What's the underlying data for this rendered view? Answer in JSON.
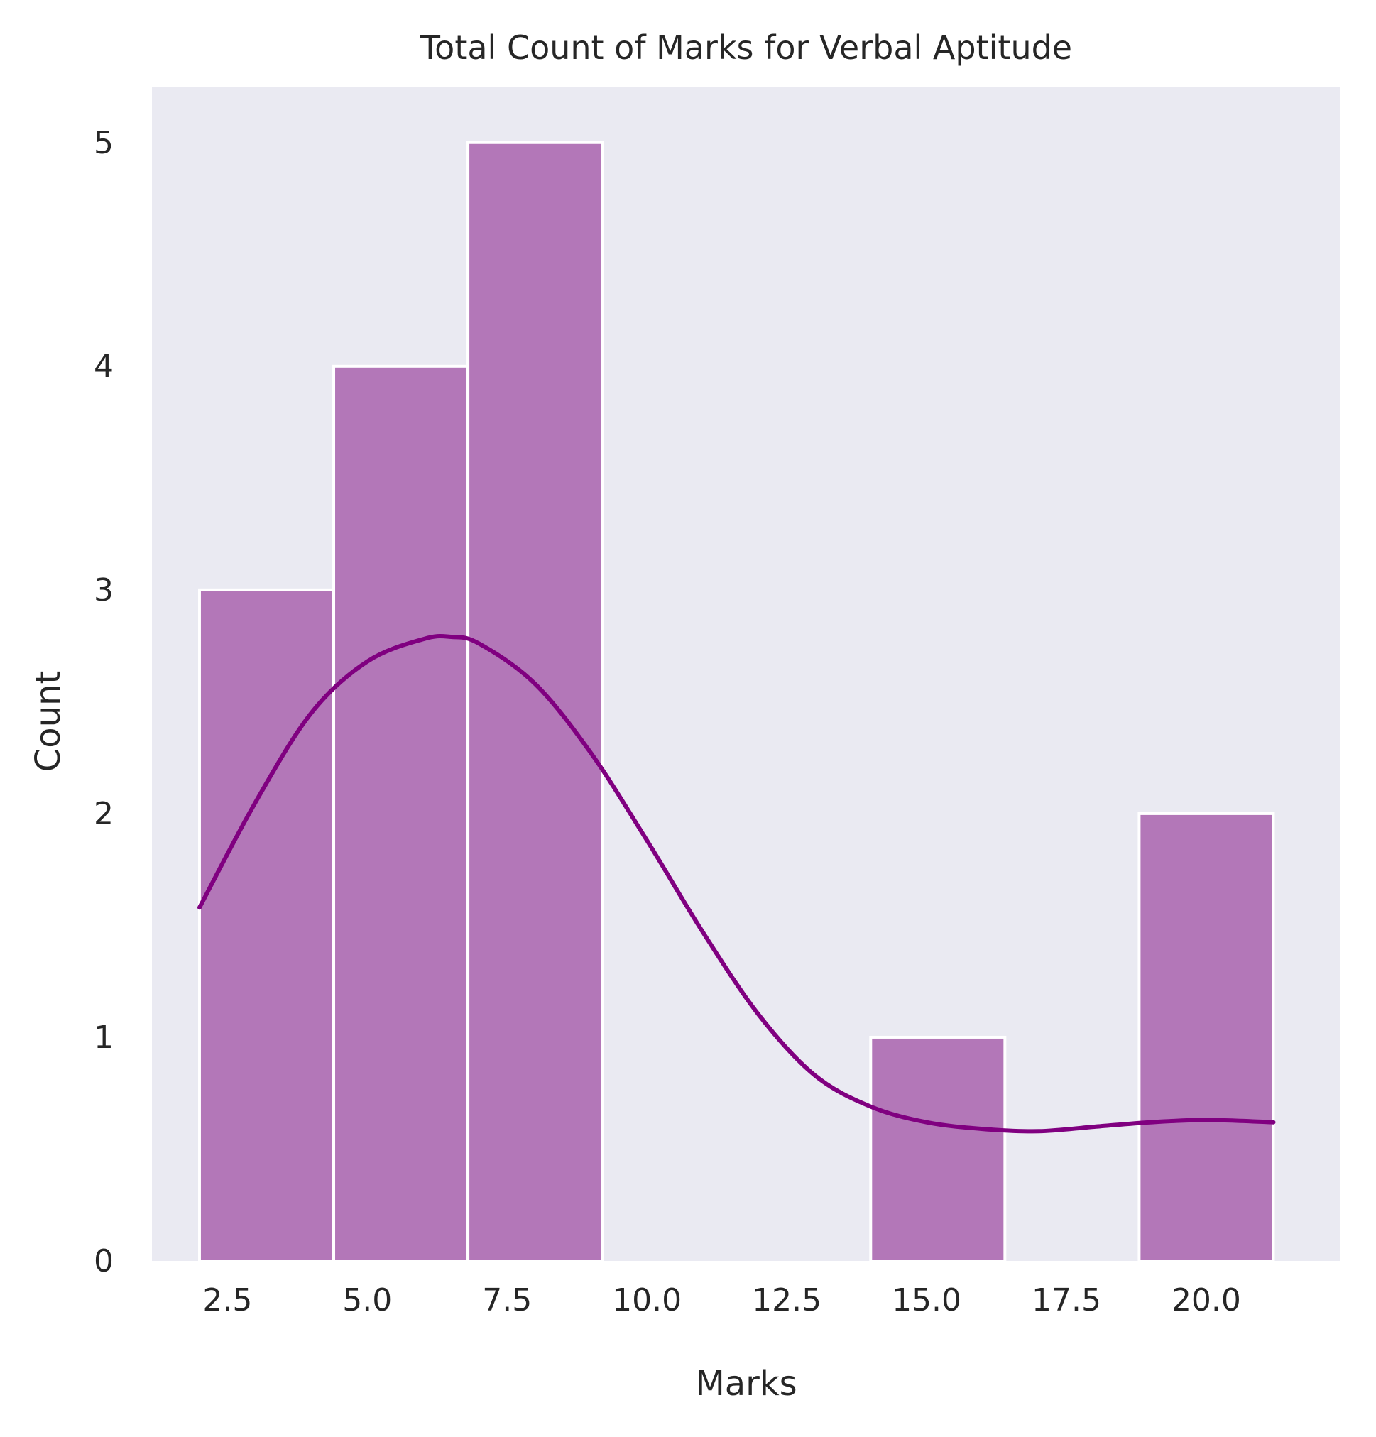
{
  "chart_data": {
    "type": "bar",
    "title": "Total Count of Marks for Verbal Aptitude",
    "xlabel": "Marks",
    "ylabel": "Count",
    "bins": [
      {
        "start": 2,
        "end": 4.4,
        "count": 3
      },
      {
        "start": 4.4,
        "end": 6.8,
        "count": 4
      },
      {
        "start": 6.8,
        "end": 9.2,
        "count": 5
      },
      {
        "start": 9.2,
        "end": 11.6,
        "count": 0
      },
      {
        "start": 11.6,
        "end": 14.0,
        "count": 0
      },
      {
        "start": 14.0,
        "end": 16.4,
        "count": 1
      },
      {
        "start": 16.4,
        "end": 18.8,
        "count": 0
      },
      {
        "start": 18.8,
        "end": 21.2,
        "count": 2
      }
    ],
    "kde": {
      "x": [
        2,
        3,
        4,
        5,
        6,
        6.5,
        7,
        8,
        9,
        10,
        11,
        12,
        13,
        14,
        15,
        16,
        17,
        18,
        19,
        20,
        21.2
      ],
      "y": [
        1.58,
        2.05,
        2.45,
        2.68,
        2.78,
        2.79,
        2.76,
        2.58,
        2.27,
        1.88,
        1.47,
        1.1,
        0.83,
        0.69,
        0.62,
        0.59,
        0.58,
        0.6,
        0.62,
        0.63,
        0.62
      ]
    },
    "xticks": [
      "2.5",
      "5.0",
      "7.5",
      "10.0",
      "12.5",
      "15.0",
      "17.5",
      "20.0"
    ],
    "yticks": [
      "0",
      "1",
      "2",
      "3",
      "4",
      "5"
    ],
    "xlim": [
      1.15,
      22.4
    ],
    "ylim": [
      0,
      5.25
    ],
    "grid": false,
    "colors": {
      "plot_background": "#eaeaf2",
      "bar_fill": "#b377b8",
      "bar_edge": "#ffffff",
      "kde_line": "#800080",
      "text": "#262626"
    }
  }
}
